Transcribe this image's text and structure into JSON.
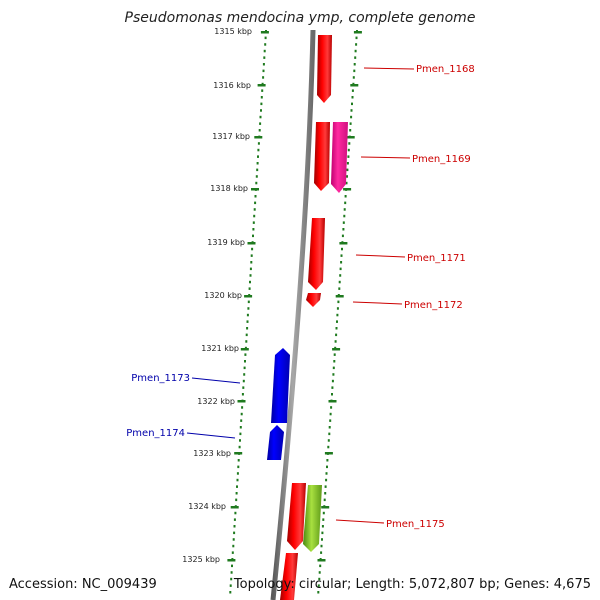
{
  "title": "Pseudomonas mendocina ymp, complete genome",
  "footer": {
    "accession": "Accession: NC_009439",
    "topology": "Topology: circular; Length: 5,072,807 bp; Genes: 4,675"
  },
  "colors": {
    "backbone": "#7a7a7a",
    "tick": "#1f7a1f",
    "forward_label": "#cc0000",
    "reverse_label": "#0000aa",
    "gene_red": "#ee0000",
    "gene_pink": "#ff2aa0",
    "gene_blue": "#0000ee",
    "gene_green": "#88cc22"
  },
  "kbp_labels": [
    "1315 kbp",
    "1316 kbp",
    "1317 kbp",
    "1318 kbp",
    "1319 kbp",
    "1320 kbp",
    "1321 kbp",
    "1322 kbp",
    "1323 kbp",
    "1324 kbp",
    "1325 kbp"
  ],
  "gene_labels": {
    "forward": [
      "Pmen_1168",
      "Pmen_1169",
      "Pmen_1171",
      "Pmen_1172",
      "Pmen_1175"
    ],
    "reverse": [
      "Pmen_1173",
      "Pmen_1174"
    ]
  }
}
